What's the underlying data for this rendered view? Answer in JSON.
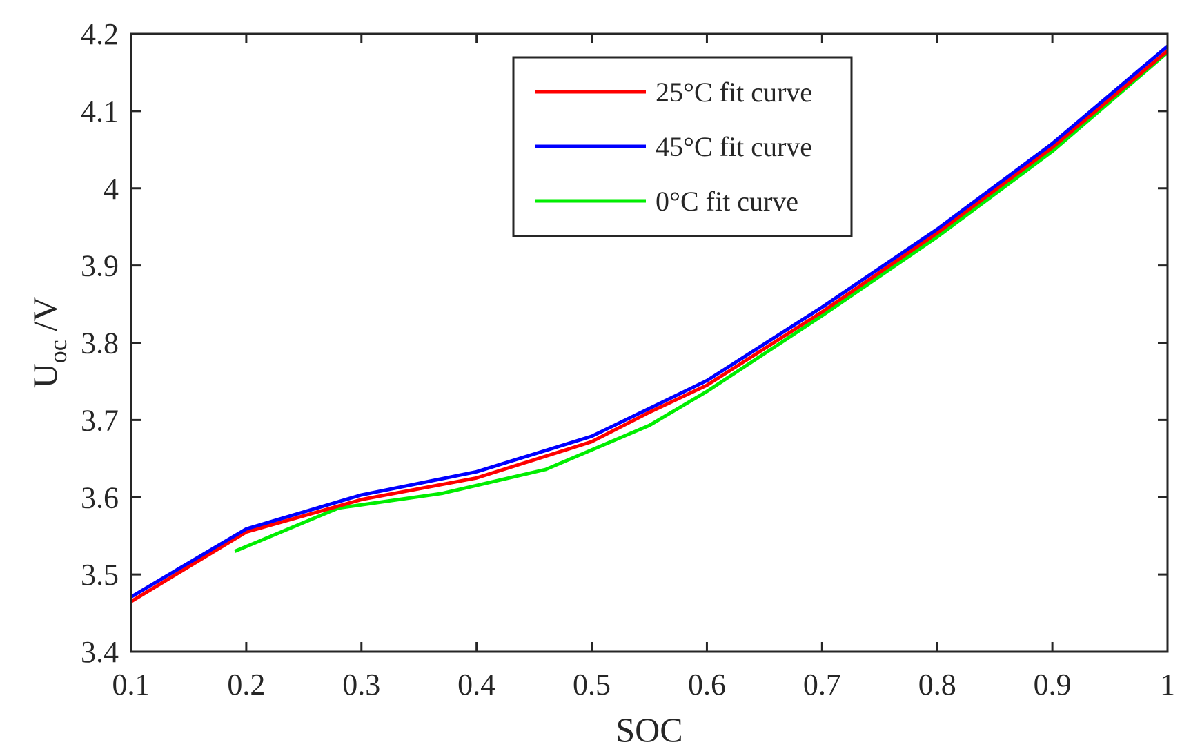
{
  "chart_data": {
    "type": "line",
    "title": "",
    "xlabel": "SOC",
    "ylabel": {
      "main": "U",
      "sub": "oc",
      "unit": " /V"
    },
    "xlim": [
      0.1,
      1
    ],
    "ylim": [
      3.4,
      4.2
    ],
    "xticks": [
      "0.1",
      "0.2",
      "0.3",
      "0.4",
      "0.5",
      "0.6",
      "0.7",
      "0.8",
      "0.9",
      "1"
    ],
    "yticks": [
      "3.4",
      "3.5",
      "3.6",
      "3.7",
      "3.8",
      "3.9",
      "4",
      "4.1",
      "4.2"
    ],
    "legend_position": "top-center",
    "series": [
      {
        "name": "25°C fit curve",
        "color": "#ff0000",
        "x": [
          0.1,
          0.2,
          0.3,
          0.4,
          0.5,
          0.55,
          0.6,
          0.7,
          0.8,
          0.9,
          1.0
        ],
        "y": [
          3.465,
          3.555,
          3.597,
          3.625,
          3.672,
          3.71,
          3.745,
          3.84,
          3.942,
          4.053,
          4.178
        ]
      },
      {
        "name": "45°C fit curve",
        "color": "#0000ff",
        "x": [
          0.1,
          0.2,
          0.3,
          0.4,
          0.5,
          0.55,
          0.6,
          0.7,
          0.8,
          0.9,
          1.0
        ],
        "y": [
          3.471,
          3.559,
          3.603,
          3.633,
          3.679,
          3.715,
          3.751,
          3.846,
          3.947,
          4.058,
          4.184
        ]
      },
      {
        "name": "0°C fit curve",
        "color": "#00ee00",
        "x": [
          0.19,
          0.28,
          0.37,
          0.46,
          0.55,
          0.6,
          0.7,
          0.8,
          0.9,
          1.0
        ],
        "y": [
          3.53,
          3.586,
          3.605,
          3.636,
          3.693,
          3.737,
          3.835,
          3.937,
          4.048,
          4.176
        ]
      }
    ]
  }
}
